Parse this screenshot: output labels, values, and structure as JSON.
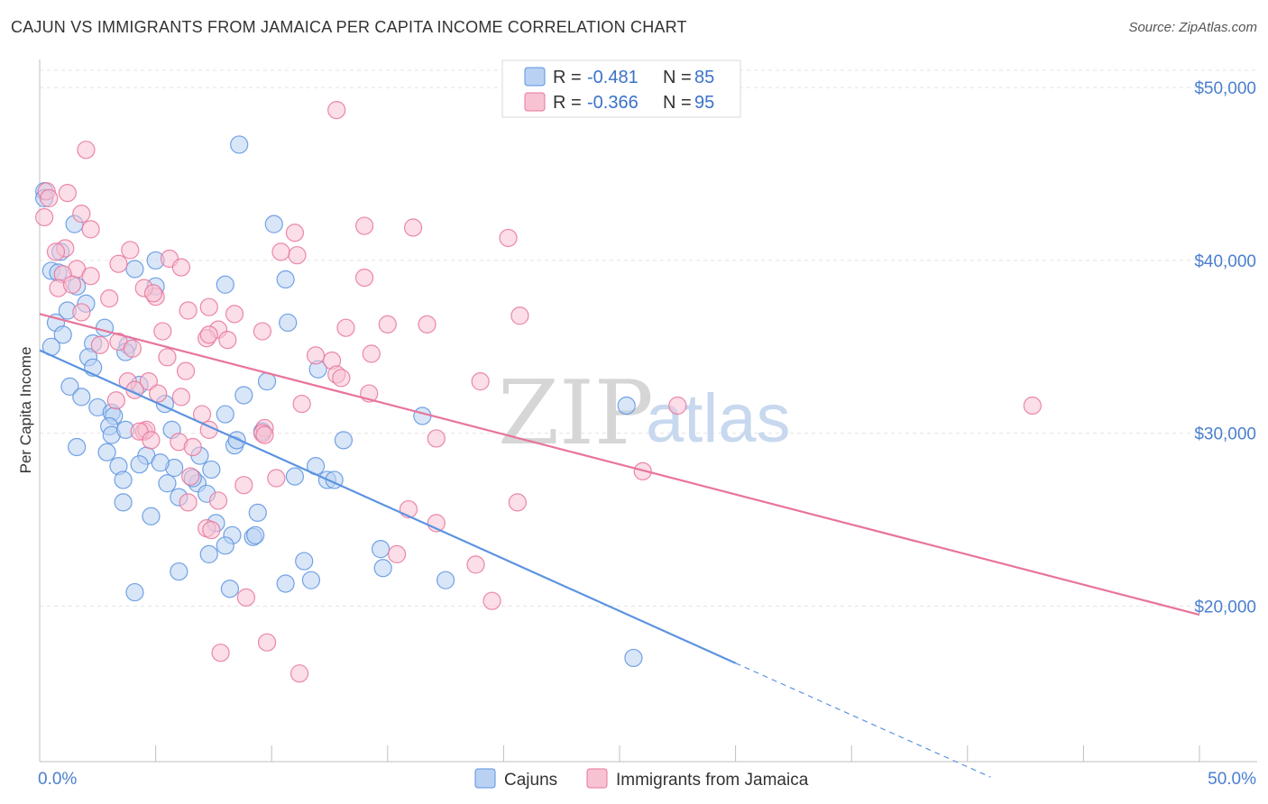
{
  "title": "CAJUN VS IMMIGRANTS FROM JAMAICA PER CAPITA INCOME CORRELATION CHART",
  "source": "Source: ZipAtlas.com",
  "watermark": {
    "zip": "ZIP",
    "atlas": "atlas"
  },
  "legend_stats": [
    {
      "r_label": "R =",
      "r_value": "-0.481",
      "n_label": "N =",
      "n_value": "85"
    },
    {
      "r_label": "R =",
      "r_value": "-0.366",
      "n_label": "N =",
      "n_value": "95"
    }
  ],
  "chart_data": {
    "type": "scatter",
    "title": "CAJUN VS IMMIGRANTS FROM JAMAICA PER CAPITA INCOME CORRELATION CHART",
    "xlabel": "",
    "ylabel": "Per Capita Income",
    "xlim": [
      0,
      50
    ],
    "ylim": [
      11000,
      51000
    ],
    "x_tick_labels": [
      {
        "value": 0,
        "label": "0.0%"
      },
      {
        "value": 50,
        "label": "50.0%"
      }
    ],
    "y_tick_labels": [
      {
        "value": 20000,
        "label": "$20,000"
      },
      {
        "value": 30000,
        "label": "$30,000"
      },
      {
        "value": 40000,
        "label": "$40,000"
      },
      {
        "value": 50000,
        "label": "$50,000"
      }
    ],
    "grid": true,
    "legend_position": "bottom",
    "series": [
      {
        "name": "Cajuns",
        "color": "#5b93e0",
        "fill": "#b9d1f3",
        "r": -0.481,
        "n": 85,
        "trend": {
          "x0": 0,
          "y0": 34800,
          "x1": 30,
          "y1": 16700,
          "dash_to_x": 41,
          "dash_to_y": 10100
        },
        "points": [
          [
            0.2,
            44000
          ],
          [
            0.2,
            43600
          ],
          [
            0.5,
            39400
          ],
          [
            0.9,
            40500
          ],
          [
            1.5,
            42100
          ],
          [
            0.8,
            39300
          ],
          [
            1.6,
            38500
          ],
          [
            2.0,
            37500
          ],
          [
            1.2,
            37100
          ],
          [
            0.7,
            36400
          ],
          [
            2.8,
            36100
          ],
          [
            1.0,
            35700
          ],
          [
            0.5,
            35000
          ],
          [
            2.3,
            35200
          ],
          [
            3.8,
            35100
          ],
          [
            3.7,
            34700
          ],
          [
            2.1,
            34400
          ],
          [
            2.3,
            33800
          ],
          [
            5.0,
            38500
          ],
          [
            4.1,
            39500
          ],
          [
            5.0,
            40000
          ],
          [
            8.0,
            38600
          ],
          [
            10.6,
            38900
          ],
          [
            10.1,
            42100
          ],
          [
            8.6,
            46700
          ],
          [
            1.3,
            32700
          ],
          [
            1.8,
            32100
          ],
          [
            2.5,
            31500
          ],
          [
            3.1,
            31200
          ],
          [
            3.2,
            31000
          ],
          [
            4.3,
            32800
          ],
          [
            5.4,
            31700
          ],
          [
            3.0,
            30400
          ],
          [
            3.1,
            29900
          ],
          [
            5.7,
            30200
          ],
          [
            6.9,
            28700
          ],
          [
            1.6,
            29200
          ],
          [
            3.4,
            28100
          ],
          [
            2.9,
            28900
          ],
          [
            4.6,
            28700
          ],
          [
            4.3,
            28200
          ],
          [
            5.8,
            28000
          ],
          [
            5.2,
            28300
          ],
          [
            7.4,
            27900
          ],
          [
            8.4,
            29300
          ],
          [
            8.5,
            29600
          ],
          [
            9.6,
            30100
          ],
          [
            10.7,
            36400
          ],
          [
            8.0,
            31100
          ],
          [
            8.8,
            32200
          ],
          [
            9.8,
            33000
          ],
          [
            12.0,
            33700
          ],
          [
            13.1,
            29600
          ],
          [
            11.0,
            27500
          ],
          [
            11.9,
            28100
          ],
          [
            12.4,
            27300
          ],
          [
            12.7,
            27300
          ],
          [
            16.5,
            31000
          ],
          [
            25.3,
            31600
          ],
          [
            3.6,
            27300
          ],
          [
            5.5,
            27100
          ],
          [
            6.8,
            27100
          ],
          [
            7.2,
            26500
          ],
          [
            6.0,
            26300
          ],
          [
            3.6,
            26000
          ],
          [
            4.8,
            25200
          ],
          [
            7.6,
            24800
          ],
          [
            9.4,
            25400
          ],
          [
            8.3,
            24100
          ],
          [
            9.2,
            24000
          ],
          [
            9.3,
            24100
          ],
          [
            7.3,
            23000
          ],
          [
            8.0,
            23500
          ],
          [
            11.4,
            22600
          ],
          [
            14.7,
            23300
          ],
          [
            14.8,
            22200
          ],
          [
            6.0,
            22000
          ],
          [
            10.6,
            21300
          ],
          [
            11.7,
            21500
          ],
          [
            17.5,
            21500
          ],
          [
            8.2,
            21000
          ],
          [
            4.1,
            20800
          ],
          [
            25.6,
            17000
          ],
          [
            6.6,
            27400
          ],
          [
            3.7,
            30200
          ]
        ]
      },
      {
        "name": "Immigrants from Jamaica",
        "color": "#e8749b",
        "fill": "#f7c3d3",
        "r": -0.366,
        "n": 95,
        "trend": {
          "x0": 0,
          "y0": 36900,
          "x1": 50,
          "y1": 19500
        },
        "points": [
          [
            0.2,
            42500
          ],
          [
            0.3,
            44000
          ],
          [
            0.4,
            43600
          ],
          [
            2.0,
            46400
          ],
          [
            1.8,
            42700
          ],
          [
            1.2,
            43900
          ],
          [
            2.2,
            41800
          ],
          [
            1.1,
            40700
          ],
          [
            0.7,
            40500
          ],
          [
            1.6,
            39500
          ],
          [
            1.0,
            39200
          ],
          [
            2.2,
            39100
          ],
          [
            0.8,
            38400
          ],
          [
            1.4,
            38600
          ],
          [
            3.0,
            37800
          ],
          [
            1.8,
            37000
          ],
          [
            3.4,
            39800
          ],
          [
            3.9,
            40600
          ],
          [
            5.6,
            40100
          ],
          [
            5.0,
            37900
          ],
          [
            6.1,
            39600
          ],
          [
            4.5,
            38400
          ],
          [
            4.9,
            38100
          ],
          [
            7.3,
            37300
          ],
          [
            7.7,
            36000
          ],
          [
            8.4,
            36900
          ],
          [
            9.6,
            35900
          ],
          [
            5.3,
            35900
          ],
          [
            6.4,
            37100
          ],
          [
            7.2,
            35500
          ],
          [
            7.3,
            35700
          ],
          [
            8.1,
            35400
          ],
          [
            2.6,
            35100
          ],
          [
            3.4,
            35300
          ],
          [
            4.0,
            34900
          ],
          [
            5.5,
            34400
          ],
          [
            6.3,
            33600
          ],
          [
            4.7,
            33000
          ],
          [
            3.8,
            33000
          ],
          [
            4.1,
            32500
          ],
          [
            5.1,
            32300
          ],
          [
            6.1,
            32100
          ],
          [
            3.3,
            31900
          ],
          [
            4.5,
            30100
          ],
          [
            7.0,
            31100
          ],
          [
            7.3,
            30200
          ],
          [
            9.7,
            30300
          ],
          [
            9.6,
            30000
          ],
          [
            9.7,
            29900
          ],
          [
            4.6,
            30200
          ],
          [
            4.3,
            30100
          ],
          [
            4.8,
            29600
          ],
          [
            6.0,
            29500
          ],
          [
            6.6,
            29200
          ],
          [
            11.0,
            41600
          ],
          [
            11.1,
            40300
          ],
          [
            10.4,
            40500
          ],
          [
            11.9,
            34500
          ],
          [
            12.6,
            34200
          ],
          [
            12.8,
            33400
          ],
          [
            11.3,
            31700
          ],
          [
            13.2,
            36100
          ],
          [
            14.0,
            39000
          ],
          [
            14.3,
            34600
          ],
          [
            14.2,
            32300
          ],
          [
            15.0,
            36300
          ],
          [
            16.7,
            36300
          ],
          [
            16.1,
            41900
          ],
          [
            14.0,
            42000
          ],
          [
            12.8,
            48700
          ],
          [
            13.0,
            33200
          ],
          [
            19.0,
            33000
          ],
          [
            20.2,
            41300
          ],
          [
            20.7,
            36800
          ],
          [
            20.6,
            26000
          ],
          [
            26.0,
            27800
          ],
          [
            27.5,
            31600
          ],
          [
            42.8,
            31600
          ],
          [
            17.1,
            29700
          ],
          [
            10.2,
            27400
          ],
          [
            8.8,
            27000
          ],
          [
            6.5,
            27500
          ],
          [
            6.4,
            26000
          ],
          [
            7.7,
            26100
          ],
          [
            15.9,
            25600
          ],
          [
            17.1,
            24800
          ],
          [
            7.2,
            24500
          ],
          [
            7.4,
            24400
          ],
          [
            15.4,
            23000
          ],
          [
            18.8,
            22400
          ],
          [
            8.9,
            20500
          ],
          [
            19.5,
            20300
          ],
          [
            9.8,
            17900
          ],
          [
            7.8,
            17300
          ],
          [
            11.2,
            16100
          ]
        ]
      }
    ]
  },
  "bottom_legend": [
    {
      "label": "Cajuns"
    },
    {
      "label": "Immigrants from Jamaica"
    }
  ]
}
